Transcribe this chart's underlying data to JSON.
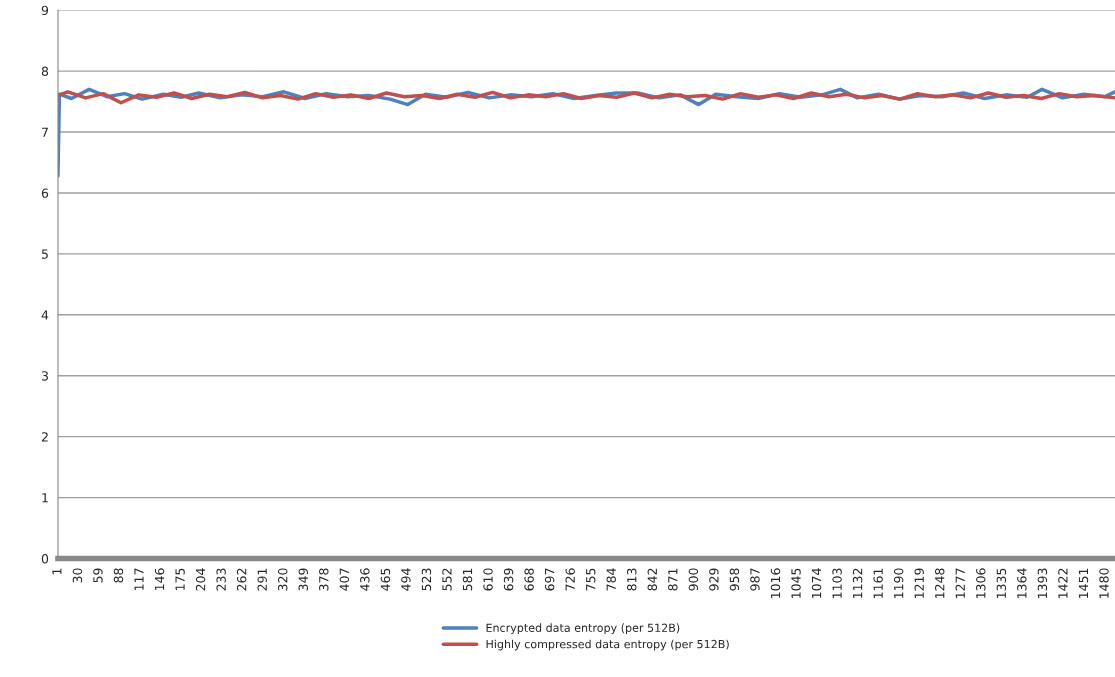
{
  "chart_data": {
    "type": "line",
    "xlim": [
      1,
      1494
    ],
    "ylim": [
      0,
      9
    ],
    "yticks": [
      0,
      1,
      2,
      3,
      4,
      5,
      6,
      7,
      8,
      9
    ],
    "xticks": [
      1,
      30,
      59,
      88,
      117,
      146,
      175,
      204,
      233,
      262,
      291,
      320,
      349,
      378,
      407,
      436,
      465,
      494,
      523,
      552,
      581,
      610,
      639,
      668,
      697,
      726,
      755,
      784,
      813,
      842,
      871,
      900,
      929,
      958,
      987,
      1016,
      1045,
      1074,
      1103,
      1132,
      1161,
      1190,
      1219,
      1248,
      1277,
      1306,
      1335,
      1364,
      1393,
      1422,
      1451,
      1480
    ],
    "grid": "y",
    "legend": "bottom",
    "marker": "none",
    "line_style": "solid",
    "series": [
      {
        "name": "Encrypted data entropy (per 512B)",
        "color": "#4f81bd",
        "x": [
          1,
          3,
          20,
          45,
          70,
          95,
          120,
          150,
          175,
          200,
          230,
          260,
          290,
          320,
          350,
          380,
          410,
          440,
          470,
          495,
          520,
          550,
          580,
          610,
          640,
          670,
          700,
          730,
          760,
          790,
          820,
          850,
          880,
          906,
          930,
          960,
          990,
          1020,
          1050,
          1080,
          1106,
          1130,
          1160,
          1190,
          1220,
          1250,
          1280,
          1310,
          1340,
          1370,
          1391,
          1420,
          1450,
          1480,
          1494
        ],
        "values": [
          6.28,
          7.62,
          7.55,
          7.7,
          7.58,
          7.63,
          7.54,
          7.62,
          7.57,
          7.64,
          7.56,
          7.61,
          7.58,
          7.66,
          7.55,
          7.63,
          7.58,
          7.6,
          7.54,
          7.45,
          7.62,
          7.57,
          7.65,
          7.56,
          7.61,
          7.58,
          7.63,
          7.55,
          7.6,
          7.64,
          7.64,
          7.56,
          7.61,
          7.45,
          7.62,
          7.58,
          7.55,
          7.63,
          7.57,
          7.61,
          7.7,
          7.56,
          7.62,
          7.54,
          7.6,
          7.58,
          7.64,
          7.55,
          7.61,
          7.57,
          7.7,
          7.56,
          7.62,
          7.58,
          7.66
        ]
      },
      {
        "name": "Highly compressed data entropy (per 512B)",
        "color": "#c0504d",
        "x": [
          1,
          15,
          40,
          65,
          90,
          115,
          140,
          165,
          190,
          215,
          240,
          265,
          290,
          315,
          340,
          365,
          390,
          415,
          440,
          465,
          490,
          515,
          540,
          565,
          590,
          615,
          640,
          665,
          690,
          715,
          740,
          765,
          790,
          815,
          840,
          865,
          890,
          915,
          940,
          965,
          990,
          1015,
          1040,
          1065,
          1090,
          1115,
          1140,
          1165,
          1190,
          1215,
          1240,
          1265,
          1290,
          1315,
          1340,
          1365,
          1390,
          1415,
          1440,
          1465,
          1494
        ],
        "values": [
          7.6,
          7.66,
          7.56,
          7.63,
          7.48,
          7.61,
          7.57,
          7.64,
          7.55,
          7.62,
          7.58,
          7.65,
          7.56,
          7.6,
          7.54,
          7.63,
          7.57,
          7.61,
          7.55,
          7.64,
          7.58,
          7.6,
          7.55,
          7.62,
          7.57,
          7.65,
          7.56,
          7.61,
          7.58,
          7.63,
          7.55,
          7.6,
          7.57,
          7.64,
          7.56,
          7.62,
          7.58,
          7.6,
          7.54,
          7.63,
          7.57,
          7.61,
          7.55,
          7.64,
          7.58,
          7.62,
          7.56,
          7.6,
          7.54,
          7.63,
          7.58,
          7.61,
          7.56,
          7.64,
          7.57,
          7.6,
          7.55,
          7.63,
          7.58,
          7.6,
          7.56
        ]
      }
    ]
  }
}
